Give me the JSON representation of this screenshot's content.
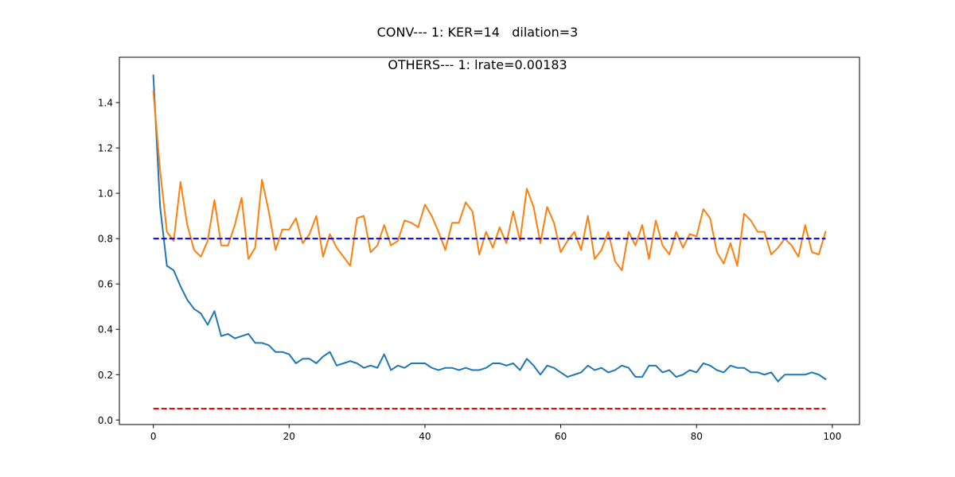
{
  "chart_data": {
    "type": "line",
    "suptitle": "CONV--- 1: KER=14   dilation=3",
    "title": "OTHERS--- 1: lrate=0.00183",
    "xlabel": "",
    "ylabel": "",
    "xlim": [
      -5,
      104
    ],
    "ylim": [
      -0.02,
      1.6
    ],
    "xticks": [
      0,
      20,
      40,
      60,
      80,
      100
    ],
    "yticks": [
      0.0,
      0.2,
      0.4,
      0.6,
      0.8,
      1.0,
      1.2,
      1.4
    ],
    "xtick_labels": [
      "0",
      "20",
      "40",
      "60",
      "80",
      "100"
    ],
    "ytick_labels": [
      "0.0",
      "0.2",
      "0.4",
      "0.6",
      "0.8",
      "1.0",
      "1.2",
      "1.4"
    ],
    "grid": false,
    "series": [
      {
        "color": "#1f77b4",
        "style": "solid",
        "x_start": 0,
        "x_step": 1,
        "values": [
          1.52,
          0.94,
          0.68,
          0.66,
          0.59,
          0.53,
          0.49,
          0.47,
          0.42,
          0.48,
          0.37,
          0.38,
          0.36,
          0.37,
          0.38,
          0.34,
          0.34,
          0.33,
          0.3,
          0.3,
          0.29,
          0.25,
          0.27,
          0.27,
          0.25,
          0.28,
          0.3,
          0.24,
          0.25,
          0.26,
          0.25,
          0.23,
          0.24,
          0.23,
          0.29,
          0.22,
          0.24,
          0.23,
          0.25,
          0.25,
          0.25,
          0.23,
          0.22,
          0.23,
          0.23,
          0.22,
          0.23,
          0.22,
          0.22,
          0.23,
          0.25,
          0.25,
          0.24,
          0.25,
          0.22,
          0.27,
          0.24,
          0.2,
          0.24,
          0.23,
          0.21,
          0.19,
          0.2,
          0.21,
          0.24,
          0.22,
          0.23,
          0.21,
          0.22,
          0.24,
          0.23,
          0.19,
          0.19,
          0.24,
          0.24,
          0.21,
          0.22,
          0.19,
          0.2,
          0.22,
          0.21,
          0.25,
          0.24,
          0.22,
          0.21,
          0.24,
          0.23,
          0.23,
          0.21,
          0.21,
          0.2,
          0.21,
          0.17,
          0.2,
          0.2,
          0.2,
          0.2,
          0.21,
          0.2,
          0.18
        ]
      },
      {
        "color": "#ff7f0e",
        "style": "solid",
        "x_start": 0,
        "x_step": 1,
        "values": [
          1.45,
          1.1,
          0.83,
          0.79,
          1.05,
          0.86,
          0.75,
          0.72,
          0.79,
          0.97,
          0.77,
          0.77,
          0.86,
          0.98,
          0.71,
          0.76,
          1.06,
          0.92,
          0.75,
          0.84,
          0.84,
          0.89,
          0.78,
          0.82,
          0.9,
          0.72,
          0.82,
          0.76,
          0.72,
          0.68,
          0.89,
          0.9,
          0.74,
          0.77,
          0.86,
          0.77,
          0.79,
          0.88,
          0.87,
          0.85,
          0.95,
          0.9,
          0.83,
          0.75,
          0.87,
          0.87,
          0.96,
          0.92,
          0.73,
          0.83,
          0.76,
          0.85,
          0.78,
          0.92,
          0.79,
          1.02,
          0.94,
          0.78,
          0.94,
          0.87,
          0.74,
          0.79,
          0.83,
          0.75,
          0.9,
          0.71,
          0.75,
          0.83,
          0.7,
          0.66,
          0.83,
          0.77,
          0.86,
          0.71,
          0.88,
          0.77,
          0.73,
          0.83,
          0.76,
          0.82,
          0.81,
          0.93,
          0.89,
          0.74,
          0.69,
          0.78,
          0.68,
          0.91,
          0.88,
          0.83,
          0.83,
          0.73,
          0.76,
          0.8,
          0.77,
          0.72,
          0.86,
          0.74,
          0.73,
          0.83
        ]
      }
    ],
    "hlines": [
      {
        "y": 0.8,
        "x_from": 0,
        "x_to": 99,
        "color": "#0000ff",
        "style": "dashed"
      },
      {
        "y": 0.05,
        "x_from": 0,
        "x_to": 99,
        "color": "#ff0000",
        "style": "dashed"
      }
    ]
  }
}
